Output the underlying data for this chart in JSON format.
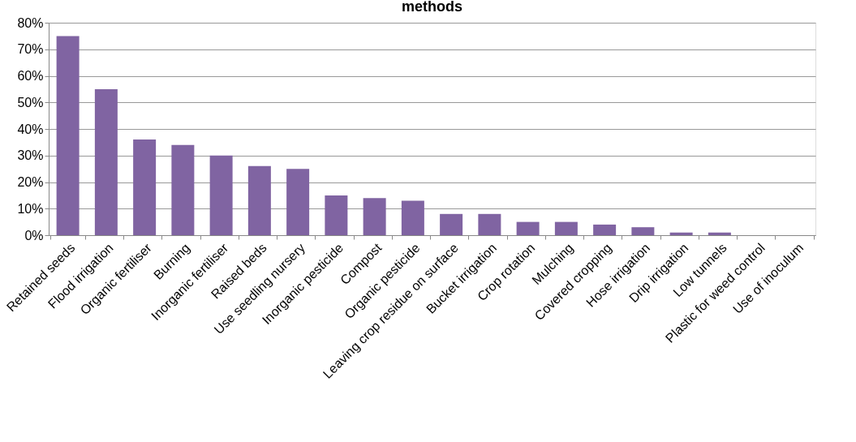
{
  "chart_data": {
    "type": "bar",
    "title": "methods",
    "categories": [
      "Retained seeds",
      "Flood irrigation",
      "Organic fertiliser",
      "Burning",
      "Inorganic fertiliser",
      "Raised beds",
      "Use seedling nursery",
      "Inorganic pesticide",
      "Compost",
      "Organic pesticide",
      "Leaving crop residue on surface",
      "Bucket irrigation",
      "Crop rotation",
      "Mulching",
      "Covered cropping",
      "Hose irrigation",
      "Drip irrigation",
      "Low tunnels",
      "Plastic for weed control",
      "Use of inoculum"
    ],
    "values": [
      75,
      55,
      36,
      34,
      30,
      26,
      25,
      15,
      14,
      13,
      8,
      8,
      5,
      5,
      4,
      3,
      1,
      1,
      0,
      0
    ],
    "color": "#8064a2",
    "ylim": [
      0,
      80
    ],
    "yticks": [
      {
        "value": 0,
        "label": "0%"
      },
      {
        "value": 10,
        "label": "10%"
      },
      {
        "value": 20,
        "label": "20%"
      },
      {
        "value": 30,
        "label": "30%"
      },
      {
        "value": 40,
        "label": "40%"
      },
      {
        "value": 50,
        "label": "50%"
      },
      {
        "value": 60,
        "label": "60%"
      },
      {
        "value": 70,
        "label": "70%"
      },
      {
        "value": 80,
        "label": "80%"
      }
    ],
    "grid": "y"
  }
}
